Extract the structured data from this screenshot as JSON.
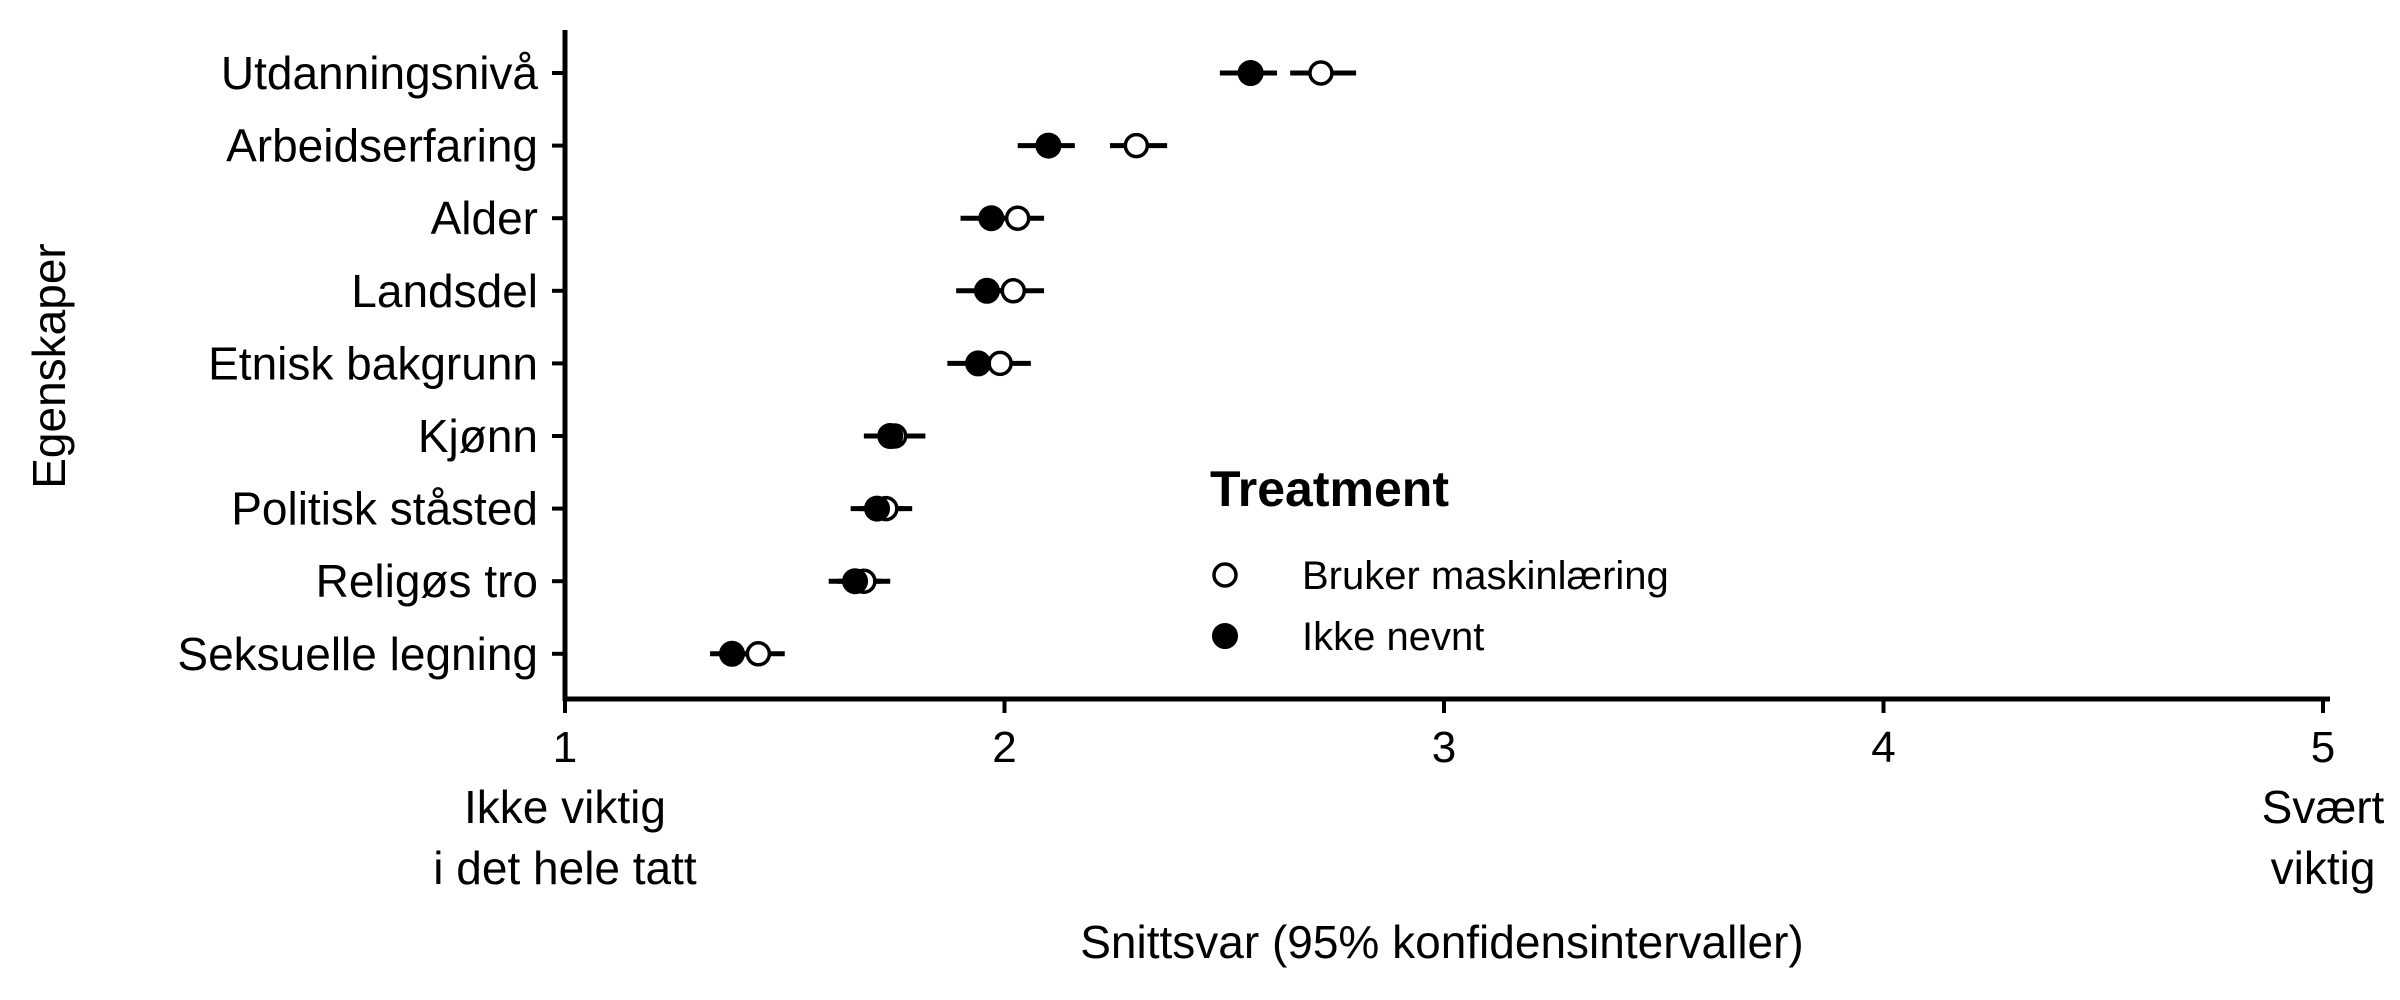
{
  "chart_data": {
    "type": "dot",
    "ylabel": "Egenskaper",
    "xlabel": "Snittsvar (95% konfidensintervaller)",
    "xlim": [
      1,
      5
    ],
    "xticks": [
      1,
      2,
      3,
      4,
      5
    ],
    "xtick_end_labels": {
      "left": [
        "Ikke viktig",
        "i det hele tatt"
      ],
      "right": [
        "Svært",
        "viktig"
      ]
    },
    "grid": false,
    "categories": [
      "Utdanningsnivå",
      "Arbeidserfaring",
      "Alder",
      "Landsdel",
      "Etnisk bakgrunn",
      "Kjønn",
      "Politisk ståsted",
      "Religøs tro",
      "Seksuelle legning"
    ],
    "legend": {
      "title": "Treatment",
      "placement": "center-right"
    },
    "series": [
      {
        "name": "Bruker maskinlæring",
        "marker": "open-circle",
        "values": [
          2.72,
          2.3,
          2.03,
          2.02,
          1.99,
          1.75,
          1.73,
          1.68,
          1.44
        ],
        "ci_low": [
          2.65,
          2.24,
          1.97,
          1.95,
          1.93,
          1.69,
          1.67,
          1.62,
          1.39
        ],
        "ci_high": [
          2.8,
          2.37,
          2.09,
          2.09,
          2.06,
          1.82,
          1.79,
          1.74,
          1.5
        ]
      },
      {
        "name": "Ikke nevnt",
        "marker": "filled-circle",
        "values": [
          2.56,
          2.1,
          1.97,
          1.96,
          1.94,
          1.74,
          1.71,
          1.66,
          1.38
        ],
        "ci_low": [
          2.49,
          2.03,
          1.9,
          1.89,
          1.87,
          1.68,
          1.65,
          1.6,
          1.33
        ],
        "ci_high": [
          2.62,
          2.16,
          2.04,
          2.03,
          2.0,
          1.8,
          1.77,
          1.72,
          1.44
        ]
      }
    ]
  }
}
